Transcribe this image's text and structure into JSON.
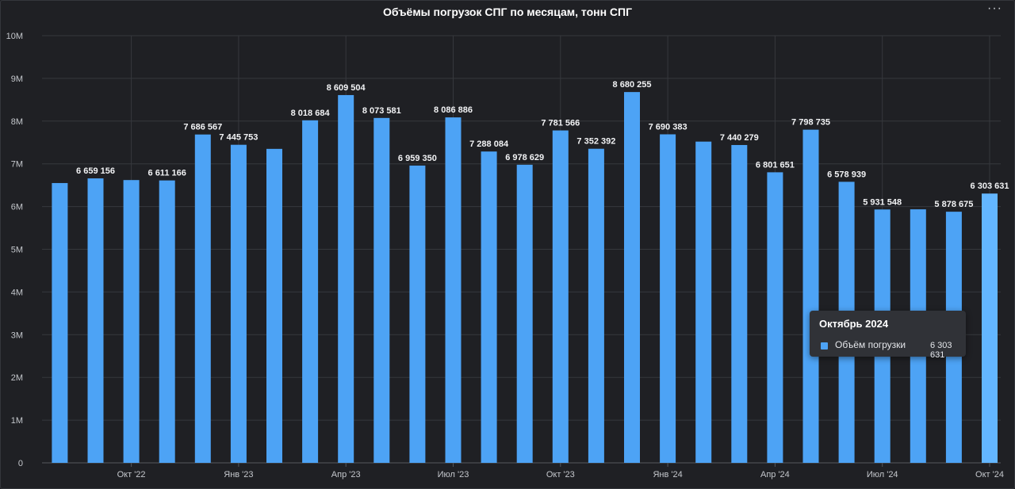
{
  "header": {
    "title": "Объёмы погрузок СПГ по месяцам, тонн СПГ",
    "menu_label": "···"
  },
  "tooltip": {
    "title": "Октябрь 2024",
    "series_name": "Объём погрузки",
    "value": "6 303 631",
    "swatch_color": "#4da3f5"
  },
  "chart_data": {
    "type": "bar",
    "title": "Объёмы погрузок СПГ по месяцам, тонн СПГ",
    "xlabel": "",
    "ylabel": "",
    "ylim": [
      0,
      10000000
    ],
    "grid": true,
    "yticks": [
      {
        "value": 0,
        "label": "0"
      },
      {
        "value": 1000000,
        "label": "1M"
      },
      {
        "value": 2000000,
        "label": "2M"
      },
      {
        "value": 3000000,
        "label": "3M"
      },
      {
        "value": 4000000,
        "label": "4M"
      },
      {
        "value": 5000000,
        "label": "5M"
      },
      {
        "value": 6000000,
        "label": "6M"
      },
      {
        "value": 7000000,
        "label": "7M"
      },
      {
        "value": 8000000,
        "label": "8M"
      },
      {
        "value": 9000000,
        "label": "9M"
      },
      {
        "value": 10000000,
        "label": "10M"
      }
    ],
    "xticks": [
      {
        "index": 2,
        "label": "Окт '22"
      },
      {
        "index": 5,
        "label": "Янв '23"
      },
      {
        "index": 8,
        "label": "Апр '23"
      },
      {
        "index": 11,
        "label": "Июл '23"
      },
      {
        "index": 14,
        "label": "Окт '23"
      },
      {
        "index": 17,
        "label": "Янв '24"
      },
      {
        "index": 20,
        "label": "Апр '24"
      },
      {
        "index": 23,
        "label": "Июл '24"
      },
      {
        "index": 26,
        "label": "Окт '24"
      }
    ],
    "bar_color": "#4da3f5",
    "highlight_color": "#63b6ff",
    "highlight_index": 26,
    "series": [
      {
        "name": "Объём погрузки",
        "values": [
          {
            "value": 6550000
          },
          {
            "value": 6659156,
            "label": "6 659 156"
          },
          {
            "value": 6620000
          },
          {
            "value": 6611166,
            "label": "6 611 166"
          },
          {
            "value": 7686567,
            "label": "7 686 567"
          },
          {
            "value": 7445753,
            "label": "7 445 753"
          },
          {
            "value": 7350000
          },
          {
            "value": 8018684,
            "label": "8 018 684"
          },
          {
            "value": 8609504,
            "label": "8 609 504"
          },
          {
            "value": 8073581,
            "label": "8 073 581"
          },
          {
            "value": 6959350,
            "label": "6 959 350"
          },
          {
            "value": 8086886,
            "label": "8 086 886"
          },
          {
            "value": 7288084,
            "label": "7 288 084"
          },
          {
            "value": 6978629,
            "label": "6 978 629"
          },
          {
            "value": 7781566,
            "label": "7 781 566"
          },
          {
            "value": 7352392,
            "label": "7 352 392"
          },
          {
            "value": 8680255,
            "label": "8 680 255"
          },
          {
            "value": 7690383,
            "label": "7 690 383"
          },
          {
            "value": 7520000
          },
          {
            "value": 7440279,
            "label": "7 440 279"
          },
          {
            "value": 6801651,
            "label": "6 801 651"
          },
          {
            "value": 7798735,
            "label": "7 798 735"
          },
          {
            "value": 6578939,
            "label": "6 578 939"
          },
          {
            "value": 5931548,
            "label": "5 931 548"
          },
          {
            "value": 5935000
          },
          {
            "value": 5878675,
            "label": "5 878 675"
          },
          {
            "value": 6303631,
            "label": "6 303 631"
          }
        ]
      }
    ]
  }
}
